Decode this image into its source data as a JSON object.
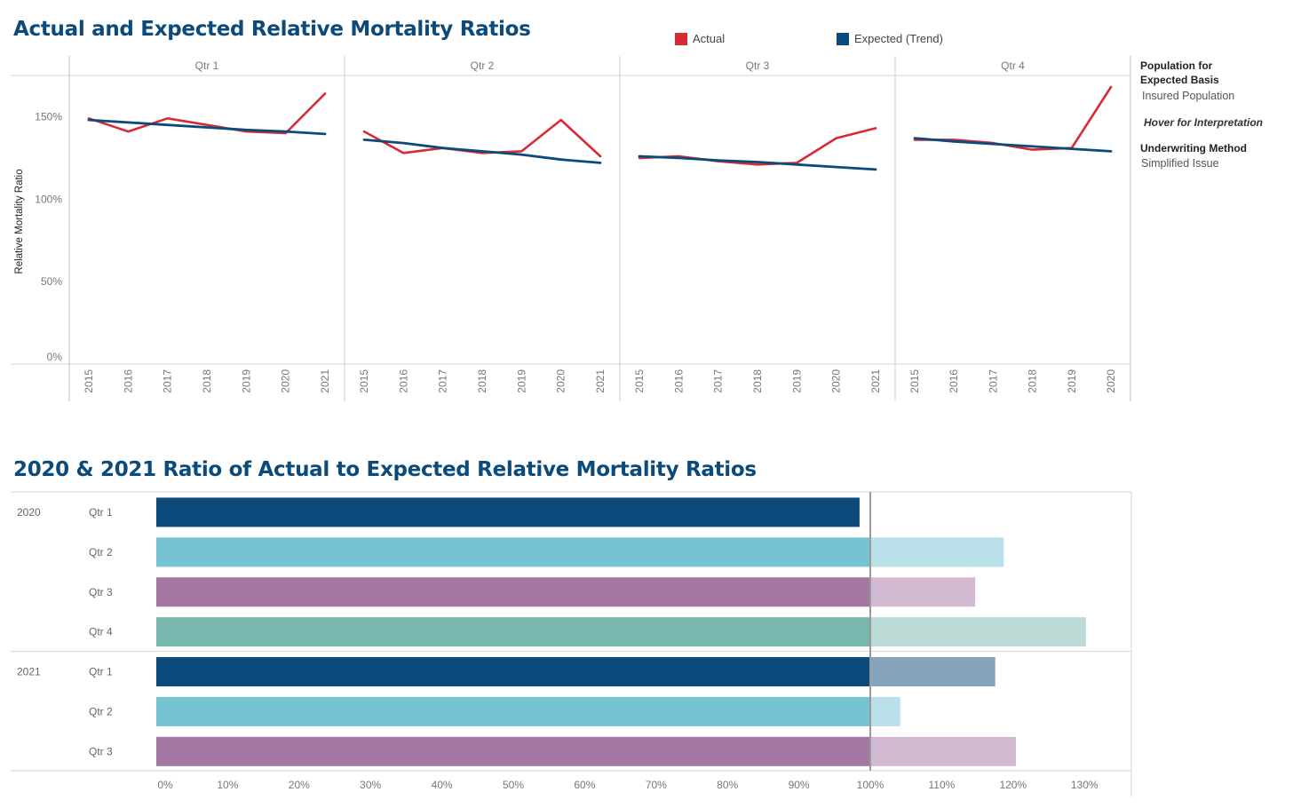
{
  "titles": {
    "top": "Actual and Expected Relative Mortality Ratios",
    "bottom": "2020 & 2021 Ratio of Actual to Expected Relative Mortality Ratios"
  },
  "legend": {
    "actual_label": "Actual",
    "expected_label": "Expected (Trend)",
    "actual_color": "#d62b36",
    "expected_color": "#0b4a7a"
  },
  "sidebar": {
    "population_heading": "Population for Expected Basis",
    "population_heading_line1": "Population for",
    "population_heading_line2": "Expected Basis",
    "population_value": "Insured Population",
    "hover_text": "Hover for Interpretation",
    "underwriting_heading": "Underwriting Method",
    "underwriting_value": "Simplified Issue"
  },
  "chart_data": [
    {
      "type": "line",
      "title": "Actual and Expected Relative Mortality Ratios",
      "ylabel": "Relative Mortality Ratio",
      "ylim": [
        0,
        1.75
      ],
      "yticks": [
        "0%",
        "50%",
        "100%",
        "150%"
      ],
      "ytick_values": [
        0,
        0.5,
        1.0,
        1.5
      ],
      "panels": [
        {
          "name": "Qtr 1",
          "x": [
            "2015",
            "2016",
            "2017",
            "2018",
            "2019",
            "2020",
            "2021"
          ],
          "series": [
            {
              "name": "Actual",
              "values": [
                1.49,
                1.41,
                1.49,
                1.45,
                1.41,
                1.4,
                1.64
              ]
            },
            {
              "name": "Expected (Trend)",
              "values": [
                1.48,
                1.465,
                1.45,
                1.435,
                1.42,
                1.41,
                1.395
              ]
            }
          ]
        },
        {
          "name": "Qtr 2",
          "x": [
            "2015",
            "2016",
            "2017",
            "2018",
            "2019",
            "2020",
            "2021"
          ],
          "series": [
            {
              "name": "Actual",
              "values": [
                1.41,
                1.28,
                1.31,
                1.28,
                1.29,
                1.48,
                1.26
              ]
            },
            {
              "name": "Expected (Trend)",
              "values": [
                1.36,
                1.34,
                1.31,
                1.29,
                1.27,
                1.24,
                1.22
              ]
            }
          ]
        },
        {
          "name": "Qtr 3",
          "x": [
            "2015",
            "2016",
            "2017",
            "2018",
            "2019",
            "2020",
            "2021"
          ],
          "series": [
            {
              "name": "Actual",
              "values": [
                1.25,
                1.26,
                1.23,
                1.21,
                1.22,
                1.37,
                1.43
              ]
            },
            {
              "name": "Expected (Trend)",
              "values": [
                1.26,
                1.25,
                1.235,
                1.225,
                1.21,
                1.195,
                1.18
              ]
            }
          ]
        },
        {
          "name": "Qtr 4",
          "x": [
            "2015",
            "2016",
            "2017",
            "2018",
            "2019",
            "2020"
          ],
          "series": [
            {
              "name": "Actual",
              "values": [
                1.36,
                1.36,
                1.34,
                1.3,
                1.31,
                1.68
              ]
            },
            {
              "name": "Expected (Trend)",
              "values": [
                1.37,
                1.35,
                1.335,
                1.32,
                1.305,
                1.29
              ]
            }
          ]
        }
      ]
    },
    {
      "type": "bar",
      "orientation": "horizontal",
      "title": "2020 & 2021 Ratio of Actual to Expected Relative Mortality Ratios",
      "xlim": [
        0,
        1.34
      ],
      "xticks": [
        "0%",
        "10%",
        "20%",
        "30%",
        "40%",
        "50%",
        "60%",
        "70%",
        "80%",
        "90%",
        "100%",
        "110%",
        "120%",
        "130%"
      ],
      "xtick_values": [
        0,
        0.1,
        0.2,
        0.3,
        0.4,
        0.5,
        0.6,
        0.7,
        0.8,
        0.9,
        1.0,
        1.1,
        1.2,
        1.3
      ],
      "reference_line": 1.0,
      "groups": [
        {
          "year": "2020",
          "bars": [
            {
              "quarter": "Qtr 1",
              "value": 0.985,
              "color": "#0b4a7a"
            },
            {
              "quarter": "Qtr 2",
              "value": 1.187,
              "color": "#76c3d3"
            },
            {
              "quarter": "Qtr 3",
              "value": 1.147,
              "color": "#a577a5"
            },
            {
              "quarter": "Qtr 4",
              "value": 1.302,
              "color": "#79b8af"
            }
          ]
        },
        {
          "year": "2021",
          "bars": [
            {
              "quarter": "Qtr 1",
              "value": 1.175,
              "color": "#0b4a7a"
            },
            {
              "quarter": "Qtr 2",
              "value": 1.042,
              "color": "#76c3d3"
            },
            {
              "quarter": "Qtr 3",
              "value": 1.204,
              "color": "#a577a5"
            }
          ]
        }
      ]
    }
  ]
}
